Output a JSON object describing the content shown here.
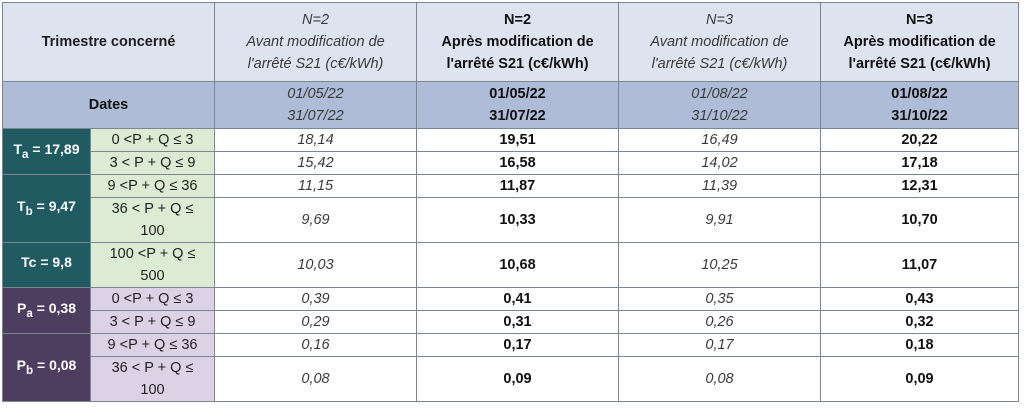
{
  "header": {
    "corner": "Trimestre concerné",
    "columns": [
      {
        "n": "N=2",
        "line1": "Avant modification de",
        "line2": "l'arrêté S21 (c€/kWh)"
      },
      {
        "n": "N=2",
        "line1": "Après modification de",
        "line2": "l'arrêté S21 (c€/kWh)"
      },
      {
        "n": "N=3",
        "line1": "Avant modification de",
        "line2": "l'arrêté S21 (c€/kWh)"
      },
      {
        "n": "N=3",
        "line1": "Après modification de",
        "line2": "l'arrêté S21 (c€/kWh)"
      }
    ]
  },
  "dates": {
    "label": "Dates",
    "columns": [
      {
        "start": "01/05/22",
        "end": "31/07/22"
      },
      {
        "start": "01/05/22",
        "end": "31/07/22"
      },
      {
        "start": "01/08/22",
        "end": "31/10/22"
      },
      {
        "start": "01/08/22",
        "end": "31/10/22"
      }
    ]
  },
  "groups": [
    {
      "sym": "T",
      "sub": "a",
      "val": "= 17,89"
    },
    {
      "sym": "T",
      "sub": "b",
      "val": "= 9,47"
    },
    {
      "sym": "Tc",
      "sub": "",
      "val": "= 9,8"
    },
    {
      "sym": "P",
      "sub": "a",
      "val": "= 0,38"
    },
    {
      "sym": "P",
      "sub": "b",
      "val": "= 0,08"
    }
  ],
  "rows": [
    {
      "range": "0 <P + Q ≤ 3",
      "values": [
        "18,14",
        "19,51",
        "16,49",
        "20,22"
      ]
    },
    {
      "range": "3 < P + Q ≤ 9",
      "values": [
        "15,42",
        "16,58",
        "14,02",
        "17,18"
      ]
    },
    {
      "range": "9 <P + Q ≤ 36",
      "values": [
        "11,15",
        "11,87",
        "11,39",
        "12,31"
      ]
    },
    {
      "range_l1": "36 < P + Q ≤",
      "range_l2": "100",
      "values": [
        "9,69",
        "10,33",
        "9,91",
        "10,70"
      ]
    },
    {
      "range_l1": "100 <P + Q ≤",
      "range_l2": "500",
      "values": [
        "10,03",
        "10,68",
        "10,25",
        "11,07"
      ]
    },
    {
      "range": "0 <P + Q ≤ 3",
      "values": [
        "0,39",
        "0,41",
        "0,35",
        "0,43"
      ]
    },
    {
      "range": "3 < P + Q ≤ 9",
      "values": [
        "0,29",
        "0,31",
        "0,26",
        "0,32"
      ]
    },
    {
      "range": "9 <P + Q ≤ 36",
      "values": [
        "0,16",
        "0,17",
        "0,17",
        "0,18"
      ]
    },
    {
      "range_l1": "36 < P + Q ≤",
      "range_l2": "100",
      "values": [
        "0,08",
        "0,09",
        "0,08",
        "0,09"
      ]
    }
  ]
}
